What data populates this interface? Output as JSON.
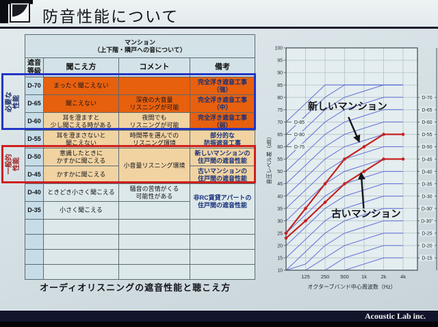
{
  "slide": {
    "title": "防音性能について",
    "caption": "オーディオリスニングの遮音性能と聴こえ方",
    "footer": "Acoustic Lab inc."
  },
  "table": {
    "top_header": "マンション\n（上下階・隣戸への音について）",
    "header_row": [
      "遮音\n等級",
      "聞こえ方",
      "コメント",
      "備考"
    ],
    "side_labels": {
      "required": "必要な性能",
      "general": "一般的\n性能"
    },
    "rows": [
      {
        "cells": [
          {
            "t": "D-70",
            "c": "grade"
          },
          {
            "t": "まったく聞こえない",
            "c": "org"
          },
          {
            "t": "",
            "c": "org"
          },
          {
            "t": "完全浮き遮音工事\n（強）",
            "c": "org rmk"
          }
        ]
      },
      {
        "cells": [
          {
            "t": "D-65",
            "c": "grade"
          },
          {
            "t": "聞こえない",
            "c": "org"
          },
          {
            "t": "深夜の大音量\nリスニングが可能",
            "c": "org"
          },
          {
            "t": "完全浮き遮音工事\n（中）",
            "c": "org rmk"
          }
        ]
      },
      {
        "cells": [
          {
            "t": "D-60",
            "c": "grade"
          },
          {
            "t": "耳を澄ますと\n少し聞こえる時がある",
            "c": "tan"
          },
          {
            "t": "夜間でも\nリスニングが可能",
            "c": "tan"
          },
          {
            "t": "完全浮き遮音工事\n（弱）",
            "c": "org rmk"
          }
        ]
      },
      {
        "cells": [
          {
            "t": "D-55",
            "c": "grade"
          },
          {
            "t": "耳を澄まさないと\n聞こえない",
            "c": "tan"
          },
          {
            "t": "時間帯を選んでの\nリスニング環境",
            "c": "tan"
          },
          {
            "t": "部分的な\n防振遮音工事",
            "c": "tan rmk"
          }
        ]
      },
      {
        "cells": [
          {
            "t": "D-50",
            "c": "grade"
          },
          {
            "t": "意識したときに\nかすかに聞こえる",
            "c": "tan"
          },
          {
            "t": "小音量リスニング環境",
            "c": "tan",
            "rs": 2
          },
          {
            "t": "新しいマンションの\n住戸間の遮音性能",
            "c": "tan rmk"
          }
        ]
      },
      {
        "cells": [
          {
            "t": "D-45",
            "c": "grade"
          },
          {
            "t": "かすかに聞こえる",
            "c": "tan"
          },
          {
            "t": "古いマンションの\n住戸間の遮音性能",
            "c": "tan rmk"
          }
        ]
      },
      {
        "cells": [
          {
            "t": "D-40",
            "c": "grade"
          },
          {
            "t": "ときどき小さく聞こえる",
            "c": "pln"
          },
          {
            "t": "騒音の苦情がくる\n可能性がある",
            "c": "pln"
          },
          {
            "t": "非RC賃貸アパートの\n住戸間の遮音性能",
            "c": "pln rmk",
            "rs": 2
          }
        ]
      },
      {
        "cells": [
          {
            "t": "D-35",
            "c": "grade"
          },
          {
            "t": "小さく聞こえる",
            "c": "pln"
          },
          {
            "t": "",
            "c": "pln"
          }
        ]
      },
      {
        "cells": [
          {
            "t": "",
            "c": "grade"
          },
          {
            "t": "",
            "c": "pln"
          },
          {
            "t": "",
            "c": "pln"
          },
          {
            "t": "",
            "c": "pln"
          }
        ]
      },
      {
        "cells": [
          {
            "t": "",
            "c": "grade"
          },
          {
            "t": "",
            "c": "pln"
          },
          {
            "t": "",
            "c": "pln"
          },
          {
            "t": "",
            "c": "pln"
          }
        ]
      },
      {
        "cells": [
          {
            "t": "",
            "c": "grade"
          },
          {
            "t": "",
            "c": "pln"
          },
          {
            "t": "",
            "c": "pln"
          },
          {
            "t": "",
            "c": "pln"
          }
        ]
      },
      {
        "cells": [
          {
            "t": "",
            "c": "grade"
          },
          {
            "t": "",
            "c": "pln"
          },
          {
            "t": "",
            "c": "pln"
          },
          {
            "t": "",
            "c": "pln"
          }
        ]
      }
    ]
  },
  "chart_data": {
    "type": "line",
    "title": "",
    "xlabel": "オクターブバンド中心周波数（Hz）",
    "ylabel": "音圧レベル差（dB）",
    "x_ticks": [
      "125",
      "250",
      "500",
      "1k",
      "2k",
      "4k"
    ],
    "ylim": [
      10,
      100
    ],
    "y_tick_step": 5,
    "grid": true,
    "grade_curve_labels_left": [
      {
        "text": "D-85",
        "y": 70
      },
      {
        "text": "D-80",
        "y": 65
      },
      {
        "text": "D-75",
        "y": 60
      }
    ],
    "grade_curve_labels_right": [
      {
        "text": "D-70",
        "y": 80
      },
      {
        "text": "D-65",
        "y": 75
      },
      {
        "text": "D-60",
        "y": 70
      },
      {
        "text": "D-55",
        "y": 65
      },
      {
        "text": "D-50",
        "y": 60
      },
      {
        "text": "D-45",
        "y": 55
      },
      {
        "text": "D-40",
        "y": 50
      },
      {
        "text": "D-35",
        "y": 45
      },
      {
        "text": "D-30",
        "y": 40
      },
      {
        "text": "D-30'",
        "y": 35
      },
      {
        "text": "D-30''",
        "y": 30
      },
      {
        "text": "D-25",
        "y": 25
      },
      {
        "text": "D-20",
        "y": 20
      },
      {
        "text": "D-15",
        "y": 15
      }
    ],
    "grade_curves": [
      [
        70,
        77.5,
        85,
        85,
        85,
        85,
        85
      ],
      [
        65,
        72.5,
        80,
        85,
        85,
        85,
        85
      ],
      [
        60,
        67.5,
        75,
        80,
        82.5,
        85,
        85
      ],
      [
        55,
        62.5,
        70,
        75,
        77.5,
        80,
        80
      ],
      [
        50,
        57.5,
        65,
        70,
        72.5,
        75,
        75
      ],
      [
        45,
        52.5,
        60,
        65,
        67.5,
        70,
        70
      ],
      [
        40,
        47.5,
        55,
        60,
        62.5,
        65,
        65
      ],
      [
        35,
        42.5,
        50,
        55,
        57.5,
        60,
        60
      ],
      [
        30,
        37.5,
        45,
        50,
        52.5,
        55,
        55
      ],
      [
        25,
        32.5,
        40,
        45,
        47.5,
        50,
        50
      ],
      [
        20,
        27.5,
        35,
        40,
        42.5,
        45,
        45
      ],
      [
        15,
        22.5,
        30,
        35,
        37.5,
        40,
        40
      ],
      [
        10,
        17.5,
        25,
        30,
        32.5,
        35,
        35
      ],
      [
        10,
        12.5,
        20,
        25,
        27.5,
        30,
        30
      ],
      [
        10,
        10,
        15,
        20,
        22.5,
        25,
        25
      ],
      [
        10,
        10,
        10,
        15,
        17.5,
        20,
        20
      ],
      [
        10,
        10,
        10,
        10,
        12.5,
        15,
        15
      ]
    ],
    "series": [
      {
        "name": "新しいマンション",
        "values": [
          25,
          35,
          45,
          55,
          60,
          65,
          65
        ]
      },
      {
        "name": "古いマンション",
        "values": [
          23,
          30,
          37.5,
          45,
          50,
          55,
          55
        ]
      }
    ],
    "annotations": [
      {
        "text": "新しいマンション",
        "xi": 3.15,
        "y": 75,
        "arrow": {
          "from": [
            3.2,
            72
          ],
          "to": [
            3.75,
            62
          ]
        }
      },
      {
        "text": "古いマンション",
        "xi": 4.1,
        "y": 31.5,
        "arrow": {
          "from": [
            3.98,
            35
          ],
          "to": [
            3.85,
            49.3
          ]
        }
      }
    ],
    "colors": {
      "series": "#c42222",
      "curves": "#5b6bd6",
      "annotation": "#15151a"
    }
  }
}
